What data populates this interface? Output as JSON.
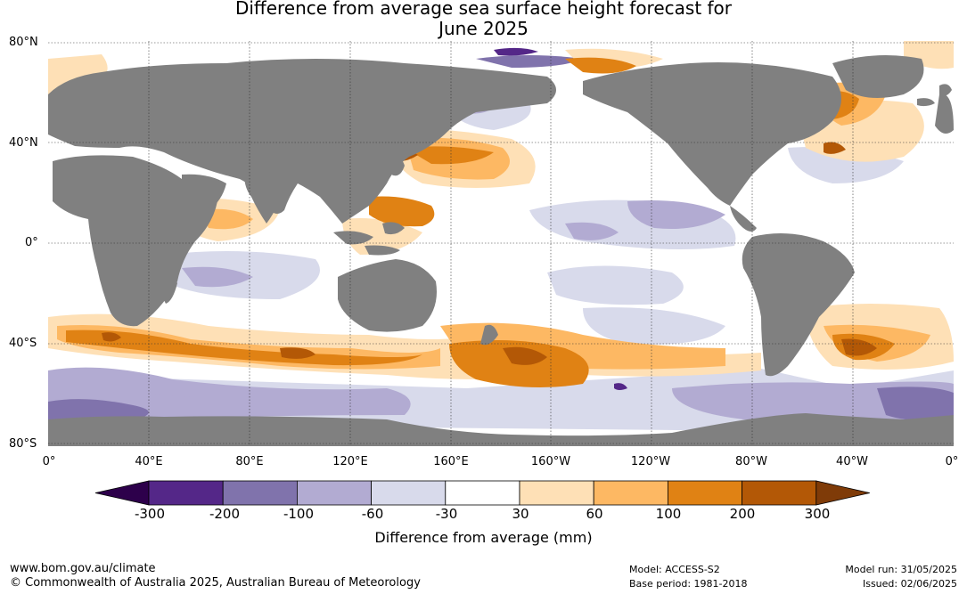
{
  "title": {
    "line1": "Difference from average sea surface height forecast for",
    "line2": "June 2025"
  },
  "map": {
    "lat_labels": [
      "80°N",
      "40°N",
      "0°",
      "40°S",
      "80°S"
    ],
    "lon_labels": [
      "0°",
      "40°E",
      "80°E",
      "120°E",
      "160°E",
      "160°W",
      "120°W",
      "80°W",
      "40°W",
      "0°"
    ],
    "lat_range": [
      -80,
      80
    ],
    "lon_range": [
      0,
      360
    ],
    "gridlines": true,
    "land_color": "#808080"
  },
  "colorbar": {
    "ticks": [
      "-300",
      "-200",
      "-100",
      "-60",
      "-30",
      "30",
      "60",
      "100",
      "200",
      "300"
    ],
    "colors": [
      "#2d004b",
      "#542788",
      "#8073ac",
      "#b2abd2",
      "#d8daeb",
      "#ffffff",
      "#fee0b6",
      "#fdb863",
      "#e08214",
      "#b35806",
      "#7f3b08"
    ],
    "label": "Difference from average (mm)"
  },
  "footer": {
    "website": "www.bom.gov.au/climate",
    "copyright": "© Commonwealth of Australia 2025, Australian Bureau of Meteorology",
    "model": "Model: ACCESS-S2",
    "base_period": "Base period: 1981-2018",
    "model_run": "Model run: 31/05/2025",
    "issued": "Issued: 02/06/2025"
  }
}
